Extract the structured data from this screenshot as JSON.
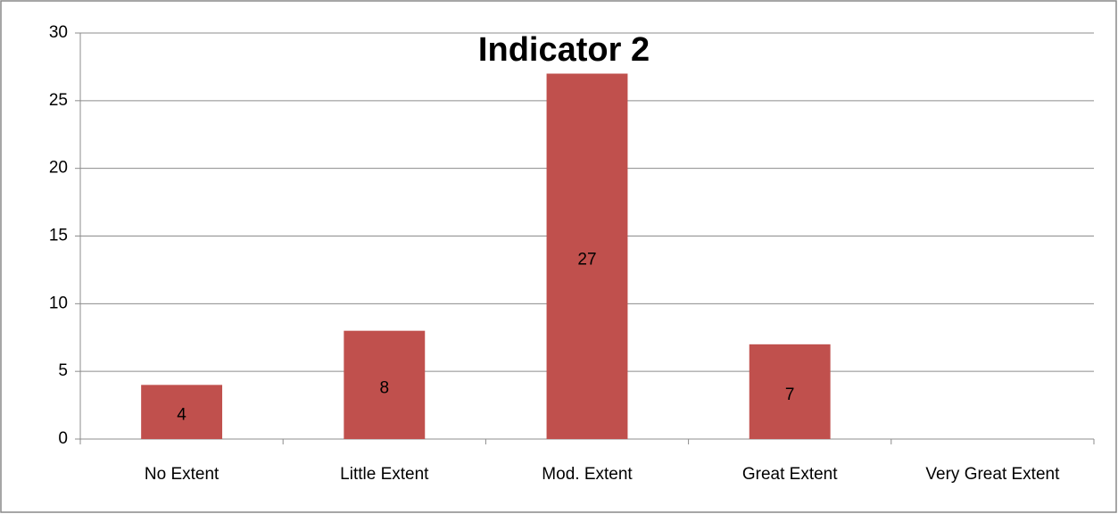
{
  "chart_data": {
    "type": "bar",
    "title": "Indicator 2",
    "categories": [
      "No Extent",
      "Little Extent",
      "Mod. Extent",
      "Great Extent",
      "Very Great Extent"
    ],
    "values": [
      4,
      8,
      27,
      7,
      null
    ],
    "color": "#c0504d",
    "ylim": [
      0,
      30
    ],
    "yticks": [
      0,
      5,
      10,
      15,
      20,
      25,
      30
    ],
    "grid": true,
    "data_labels": true
  }
}
